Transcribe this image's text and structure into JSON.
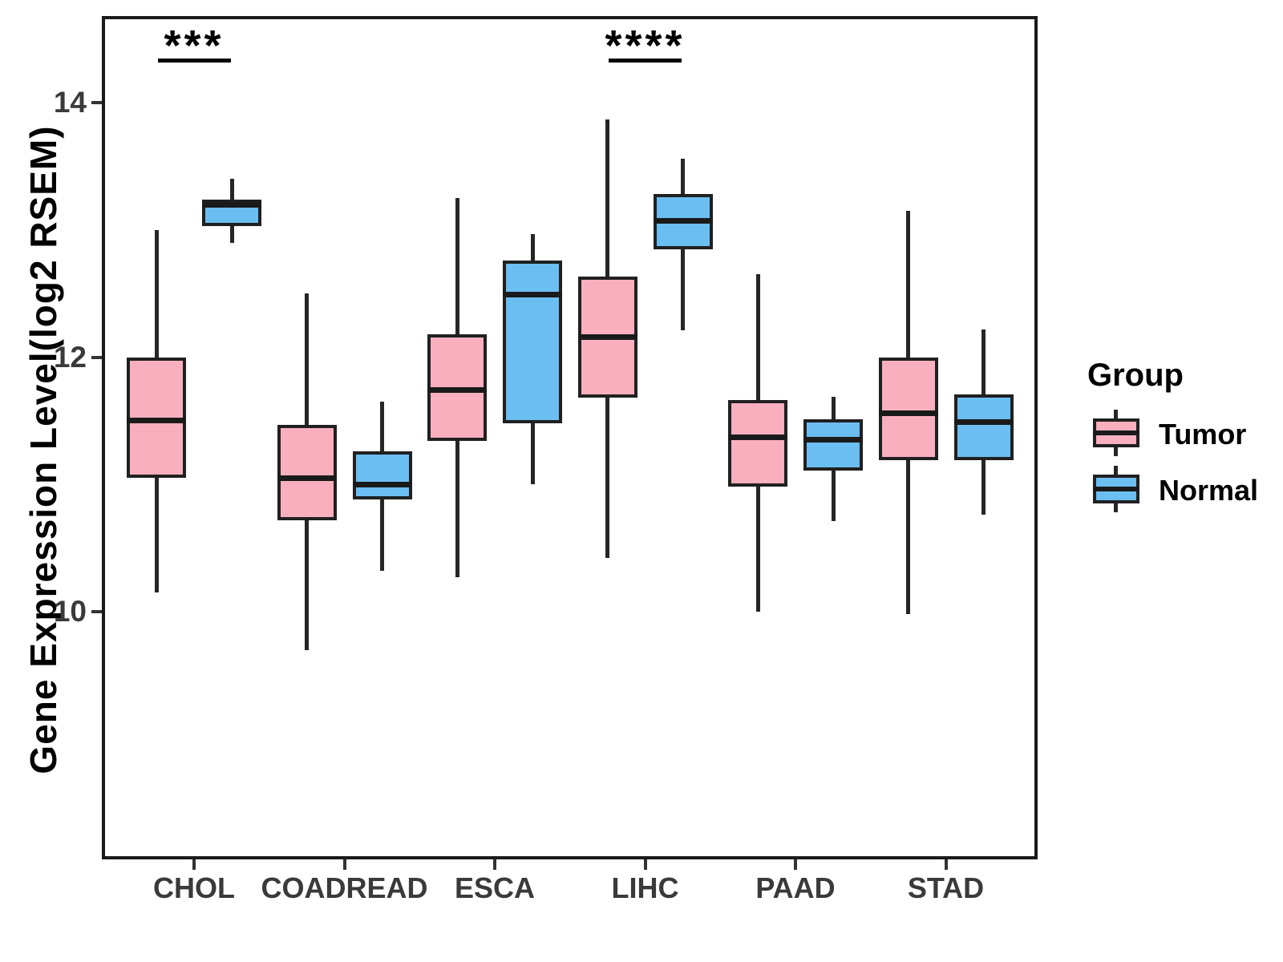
{
  "axes": {
    "y_title": "Gene Expression Level(log2 RSEM)",
    "y_tick_labels": [
      "14",
      "12",
      "10"
    ],
    "x_categories": [
      "CHOL",
      "COADREAD",
      "ESCA",
      "LIHC",
      "PAAD",
      "STAD"
    ]
  },
  "legend": {
    "title": "Group",
    "items": [
      {
        "label": "Tumor",
        "color": "#F9AFBE"
      },
      {
        "label": "Normal",
        "color": "#6BBEF2"
      }
    ]
  },
  "chart_data": {
    "type": "boxplot",
    "title": "",
    "xlabel": "",
    "ylabel": "Gene Expression Level(log2 RSEM)",
    "categories": [
      "CHOL",
      "COADREAD",
      "ESCA",
      "LIHC",
      "PAAD",
      "STAD"
    ],
    "y_ticks": [
      14,
      12,
      10
    ],
    "ylim": [
      8.07,
      14.67
    ],
    "grid": false,
    "legend_position": "right",
    "series": [
      {
        "name": "Tumor",
        "color": "#F9AFBE",
        "boxes": [
          {
            "category": "CHOL",
            "min": 10.15,
            "q1": 11.05,
            "median": 11.5,
            "q3": 12.0,
            "max": 13.0
          },
          {
            "category": "COADREAD",
            "min": 9.7,
            "q1": 10.72,
            "median": 11.05,
            "q3": 11.47,
            "max": 12.5
          },
          {
            "category": "ESCA",
            "min": 10.27,
            "q1": 11.34,
            "median": 11.74,
            "q3": 12.18,
            "max": 13.25
          },
          {
            "category": "LIHC",
            "min": 10.42,
            "q1": 11.68,
            "median": 12.16,
            "q3": 12.63,
            "max": 13.87
          },
          {
            "category": "PAAD",
            "min": 10.0,
            "q1": 10.98,
            "median": 11.37,
            "q3": 11.66,
            "max": 12.65
          },
          {
            "category": "STAD",
            "min": 9.98,
            "q1": 11.19,
            "median": 11.56,
            "q3": 12.0,
            "max": 13.15
          }
        ]
      },
      {
        "name": "Normal",
        "color": "#6BBEF2",
        "boxes": [
          {
            "category": "CHOL",
            "min": 12.9,
            "q1": 13.03,
            "median": 13.2,
            "q3": 13.24,
            "max": 13.4
          },
          {
            "category": "COADREAD",
            "min": 10.32,
            "q1": 10.88,
            "median": 11.0,
            "q3": 11.26,
            "max": 11.65
          },
          {
            "category": "ESCA",
            "min": 11.0,
            "q1": 11.48,
            "median": 12.49,
            "q3": 12.76,
            "max": 12.97
          },
          {
            "category": "LIHC",
            "min": 12.21,
            "q1": 12.85,
            "median": 13.07,
            "q3": 13.28,
            "max": 13.56
          },
          {
            "category": "PAAD",
            "min": 10.71,
            "q1": 11.11,
            "median": 11.35,
            "q3": 11.51,
            "max": 11.69
          },
          {
            "category": "STAD",
            "min": 10.76,
            "q1": 11.19,
            "median": 11.49,
            "q3": 11.71,
            "max": 12.22
          }
        ]
      }
    ],
    "annotations": [
      {
        "category": "CHOL",
        "text": "***"
      },
      {
        "category": "LIHC",
        "text": "****"
      }
    ]
  }
}
